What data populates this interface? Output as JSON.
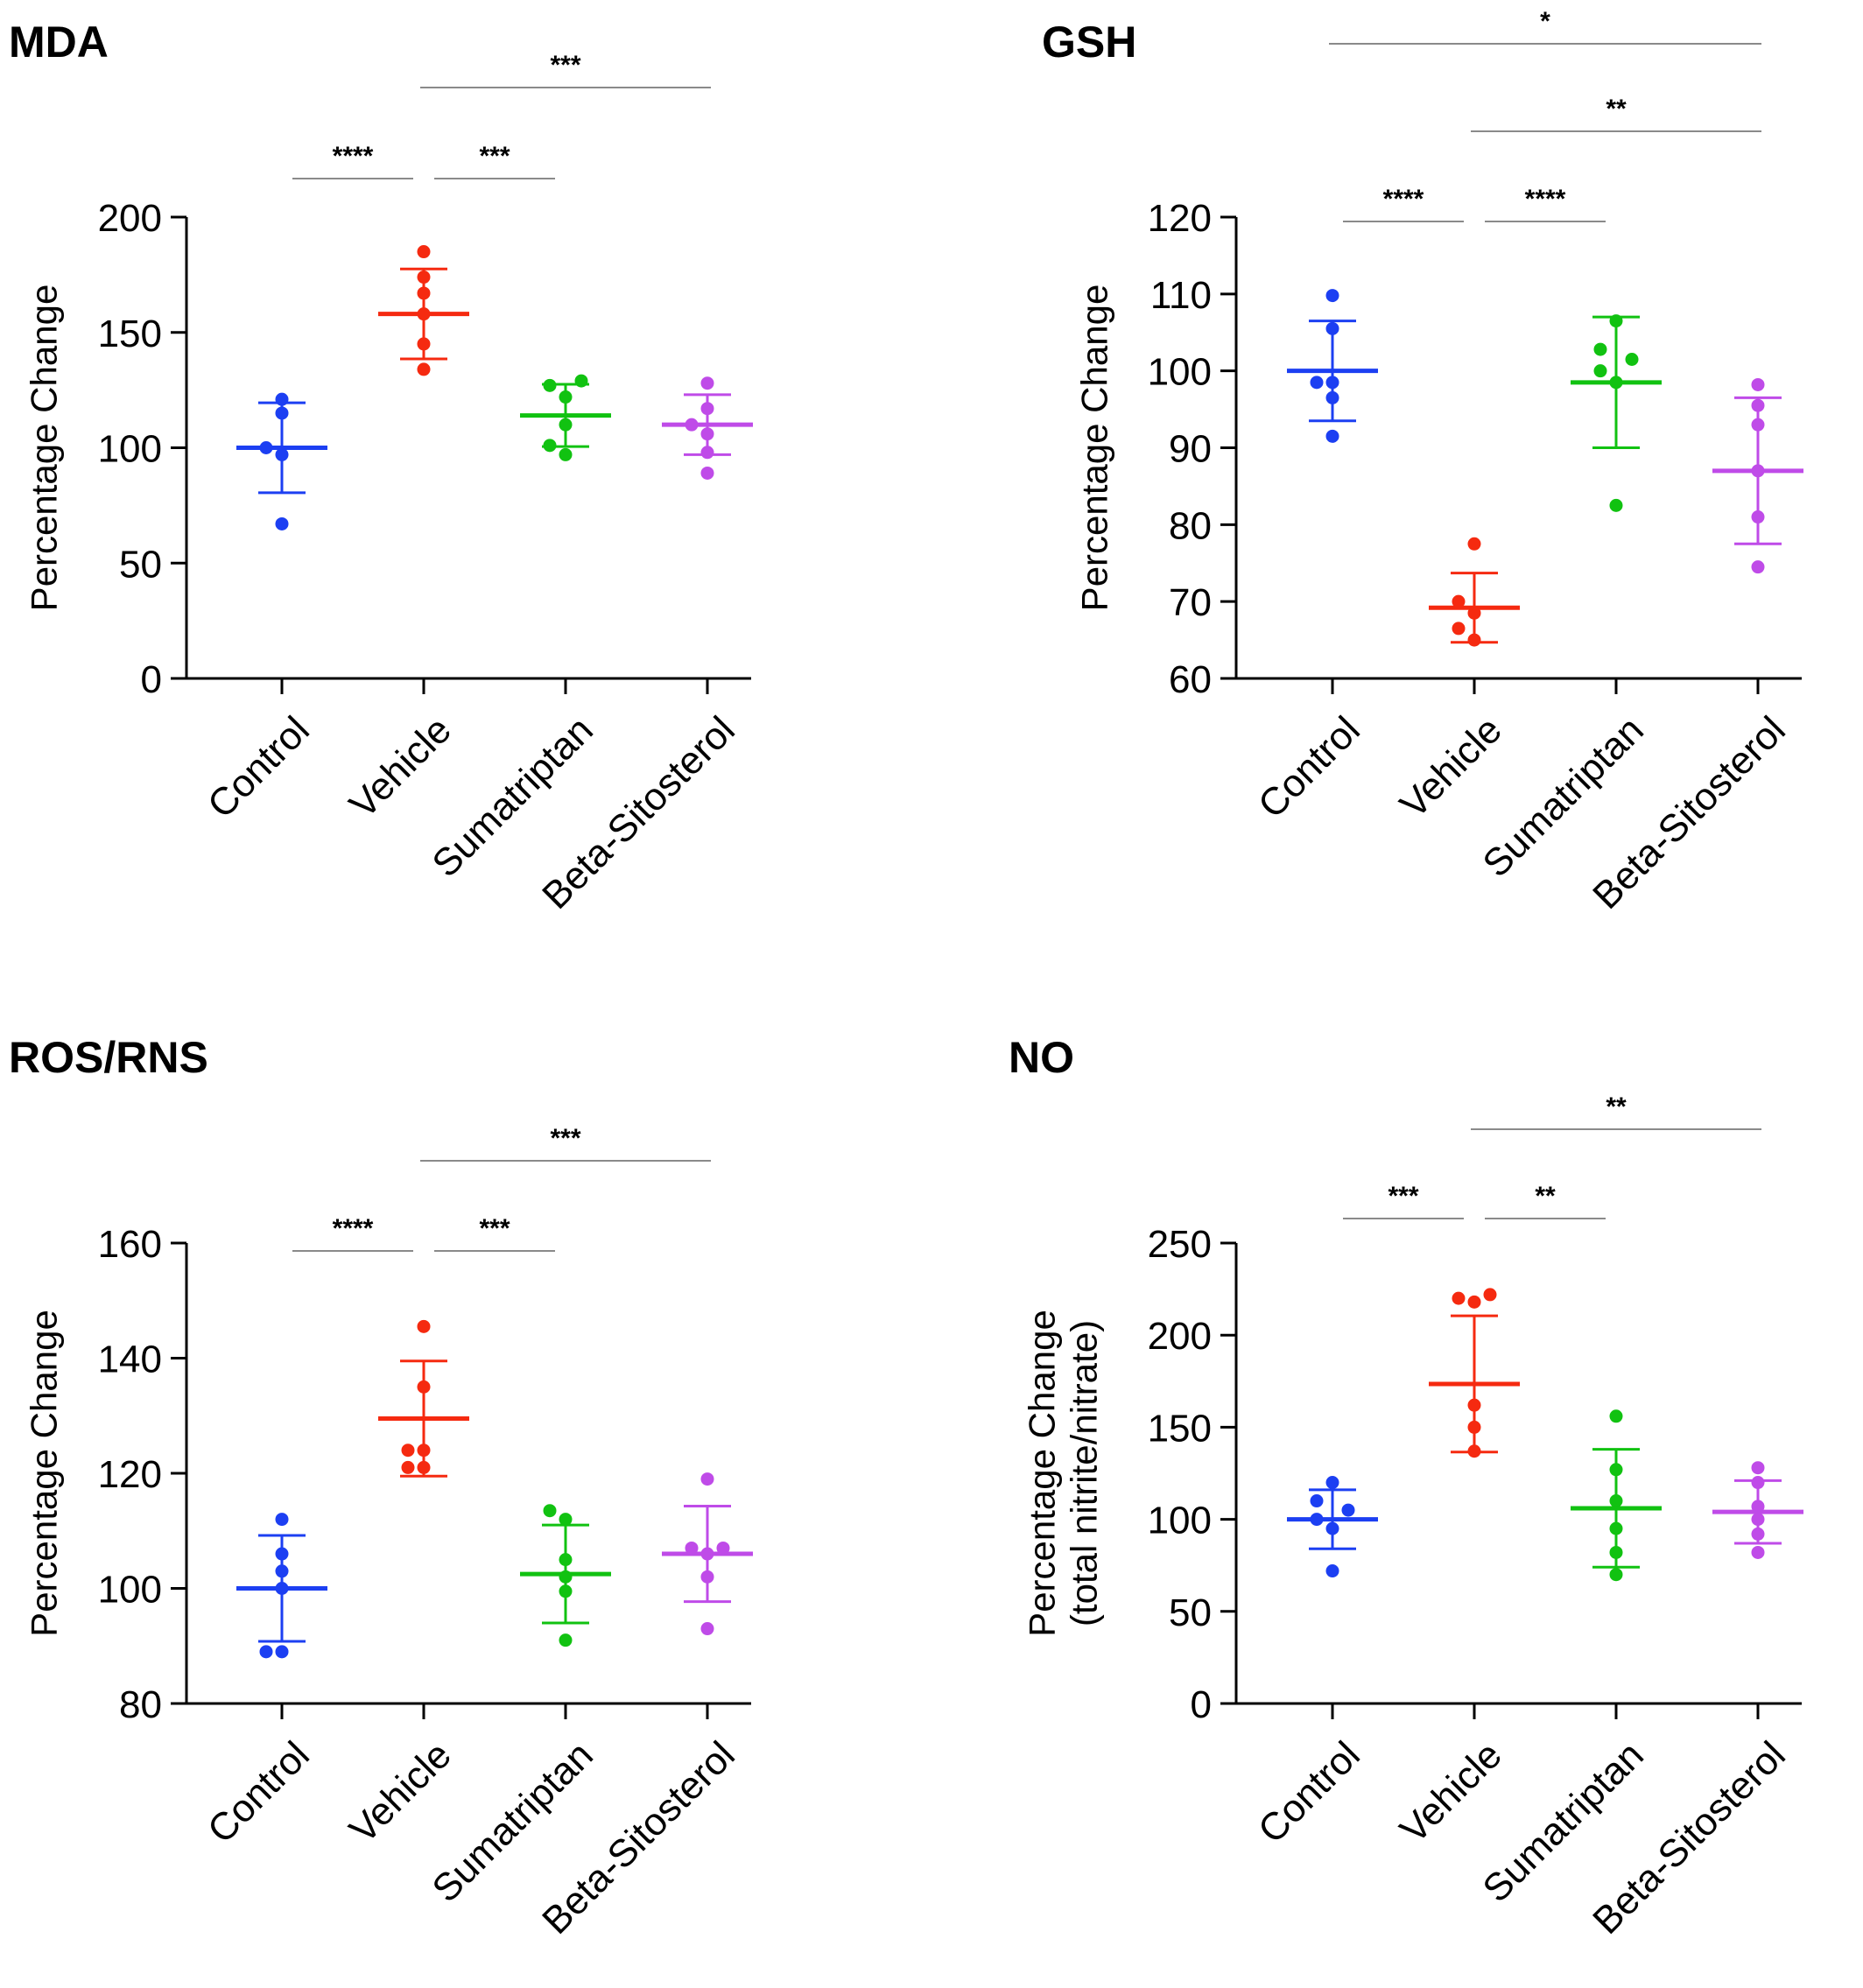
{
  "chart_data": [
    {
      "type": "scatter",
      "title": "MDA",
      "ylabel": [
        "Percentage Change"
      ],
      "categories": [
        "Control",
        "Vehicle",
        "Sumatriptan",
        "Beta-Sitosterol"
      ],
      "ylim": [
        0,
        200
      ],
      "yticks": [
        0,
        50,
        100,
        150,
        200
      ],
      "series": [
        {
          "color": "#1c3ff2",
          "points": [
            67,
            97,
            100,
            115,
            121
          ],
          "mean": 100,
          "sd": 19.5
        },
        {
          "color": "#f52a10",
          "points": [
            134,
            145,
            158,
            167,
            174,
            185
          ],
          "mean": 158,
          "sd": 19.5
        },
        {
          "color": "#11c211",
          "points": [
            97,
            101,
            110,
            122,
            127,
            129
          ],
          "mean": 114,
          "sd": 13.5
        },
        {
          "color": "#bf4be8",
          "points": [
            89,
            98,
            106,
            110,
            117,
            128
          ],
          "mean": 110,
          "sd": 13
        }
      ],
      "significance": [
        {
          "from": 0,
          "to": 1,
          "label": "****",
          "level": 0
        },
        {
          "from": 1,
          "to": 2,
          "label": "***",
          "level": 0
        },
        {
          "from": 1,
          "to": 3,
          "label": "***",
          "level": 1
        }
      ]
    },
    {
      "type": "scatter",
      "title": "GSH",
      "ylabel": [
        "Percentage Change"
      ],
      "categories": [
        "Control",
        "Vehicle",
        "Sumatriptan",
        "Beta-Sitosterol"
      ],
      "ylim": [
        60,
        120
      ],
      "yticks": [
        60,
        70,
        80,
        90,
        100,
        110,
        120
      ],
      "series": [
        {
          "color": "#1c3ff2",
          "points": [
            91.5,
            96.5,
            98.5,
            98.5,
            105.5,
            109.8
          ],
          "mean": 100,
          "sd": 6.5
        },
        {
          "color": "#f52a10",
          "points": [
            65,
            66.5,
            68.5,
            70,
            77.5
          ],
          "mean": 69.2,
          "sd": 4.5
        },
        {
          "color": "#11c211",
          "points": [
            82.5,
            98.5,
            100,
            101.5,
            102.8,
            106.5
          ],
          "mean": 98.5,
          "sd": 8.5
        },
        {
          "color": "#bf4be8",
          "points": [
            74.5,
            81,
            87,
            93,
            95.5,
            98.2
          ],
          "mean": 87,
          "sd": 9.5
        }
      ],
      "significance": [
        {
          "from": 0,
          "to": 1,
          "label": "****",
          "level": 0
        },
        {
          "from": 1,
          "to": 2,
          "label": "****",
          "level": 0
        },
        {
          "from": 1,
          "to": 3,
          "label": "**",
          "level": 1
        },
        {
          "from": 0,
          "to": 3,
          "label": "*",
          "level": 2
        }
      ]
    },
    {
      "type": "scatter",
      "title": "ROS/RNS",
      "ylabel": [
        "Percentage Change"
      ],
      "categories": [
        "Control",
        "Vehicle",
        "Sumatriptan",
        "Beta-Sitosterol"
      ],
      "ylim": [
        80,
        160
      ],
      "yticks": [
        80,
        100,
        120,
        140,
        160
      ],
      "series": [
        {
          "color": "#1c3ff2",
          "points": [
            89,
            89,
            100,
            103,
            106,
            112
          ],
          "mean": 100,
          "sd": 9.2
        },
        {
          "color": "#f52a10",
          "points": [
            121,
            121,
            124,
            124,
            135,
            145.5
          ],
          "mean": 129.5,
          "sd": 10
        },
        {
          "color": "#11c211",
          "points": [
            91,
            99.5,
            102,
            105,
            112,
            113.5
          ],
          "mean": 102.5,
          "sd": 8.5
        },
        {
          "color": "#bf4be8",
          "points": [
            93,
            102,
            106,
            107,
            107,
            119
          ],
          "mean": 106,
          "sd": 8.3
        }
      ],
      "significance": [
        {
          "from": 0,
          "to": 1,
          "label": "****",
          "level": 0
        },
        {
          "from": 1,
          "to": 2,
          "label": "***",
          "level": 0
        },
        {
          "from": 1,
          "to": 3,
          "label": "***",
          "level": 1
        }
      ]
    },
    {
      "type": "scatter",
      "title": "NO",
      "ylabel": [
        "Percentage Change",
        "(total nitrite/nitrate)"
      ],
      "categories": [
        "Control",
        "Vehicle",
        "Sumatriptan",
        "Beta-Sitosterol"
      ],
      "ylim": [
        0,
        250
      ],
      "yticks": [
        0,
        50,
        100,
        150,
        200,
        250
      ],
      "series": [
        {
          "color": "#1c3ff2",
          "points": [
            72,
            95,
            100,
            105,
            110,
            120
          ],
          "mean": 100,
          "sd": 16
        },
        {
          "color": "#f52a10",
          "points": [
            137,
            150,
            162,
            218,
            220,
            222
          ],
          "mean": 173.5,
          "sd": 37
        },
        {
          "color": "#11c211",
          "points": [
            70,
            82,
            95,
            110,
            127,
            156
          ],
          "mean": 106,
          "sd": 32
        },
        {
          "color": "#bf4be8",
          "points": [
            82,
            92,
            100,
            107,
            120,
            128
          ],
          "mean": 104,
          "sd": 17
        }
      ],
      "significance": [
        {
          "from": 0,
          "to": 1,
          "label": "***",
          "level": 0
        },
        {
          "from": 1,
          "to": 2,
          "label": "**",
          "level": 0
        },
        {
          "from": 1,
          "to": 3,
          "label": "**",
          "level": 1
        }
      ]
    }
  ]
}
